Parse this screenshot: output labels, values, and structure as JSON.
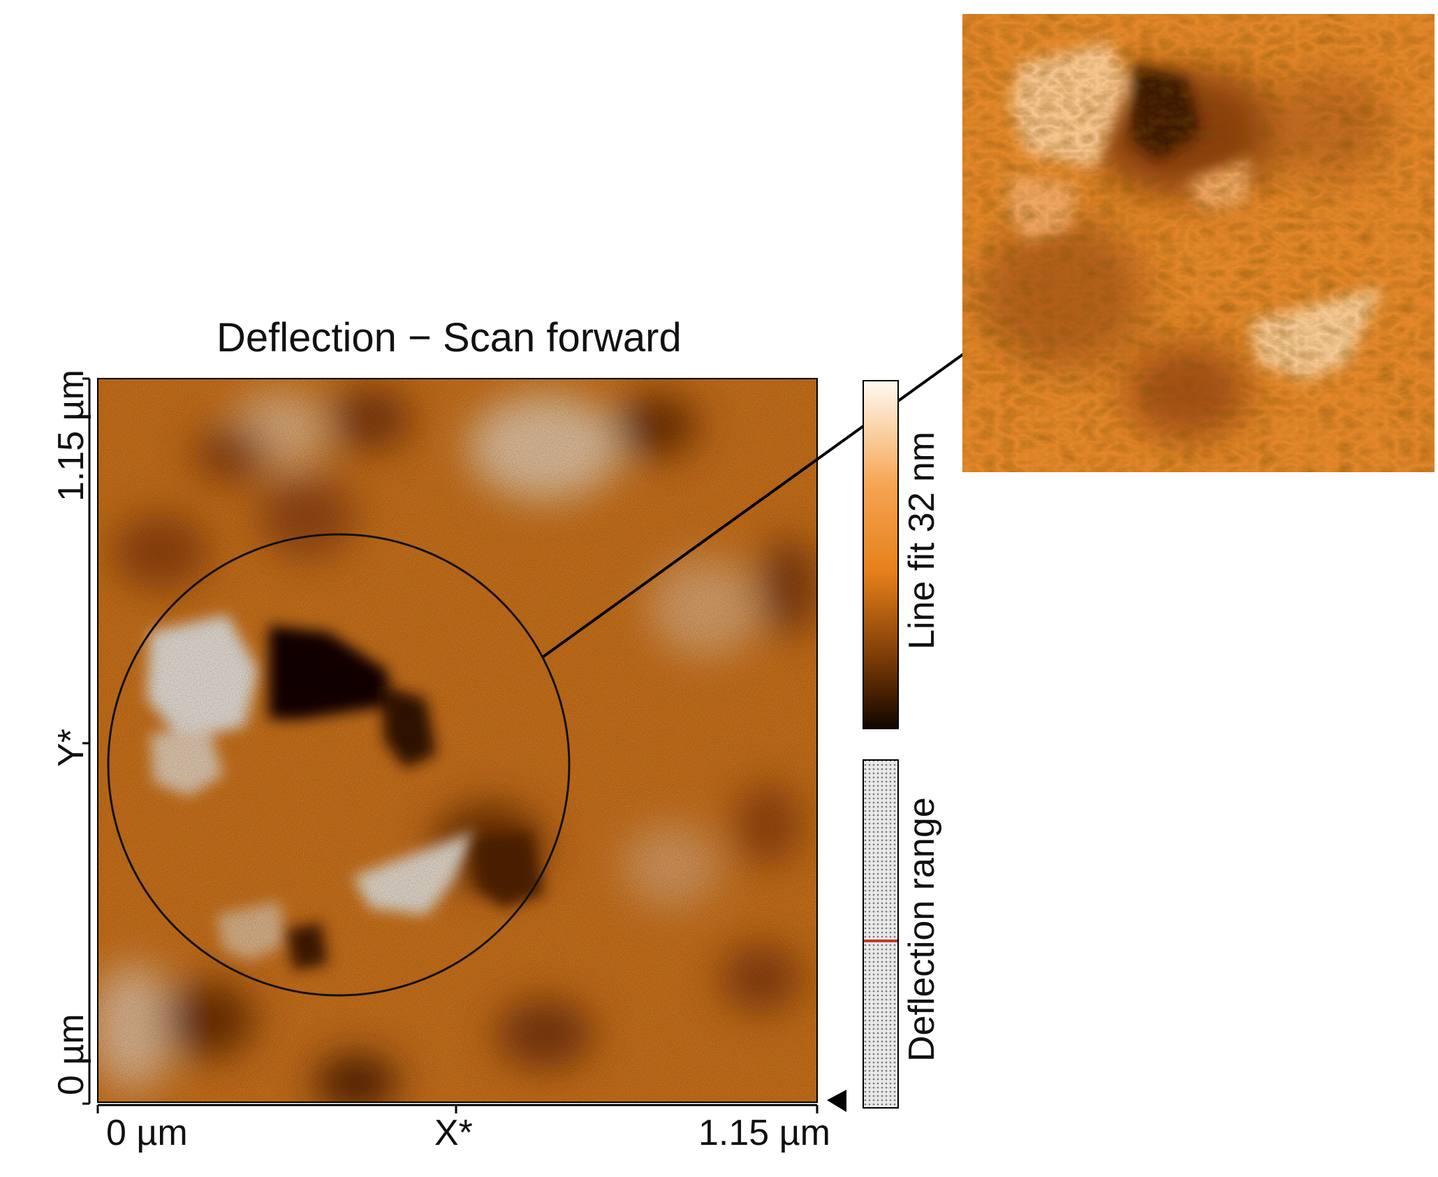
{
  "figure": {
    "title": "Deflection − Scan forward",
    "x_axis": {
      "min_label": "0 µm",
      "mid_label": "X*",
      "max_label": "1.15 µm"
    },
    "y_axis": {
      "min_label": "0 µm",
      "mid_label": "Y*",
      "max_label": "1.15 µm"
    },
    "colorbar": {
      "label": "Line fit 32 nm",
      "gradient": [
        "#fffaf2",
        "#f6a552",
        "#e6801a",
        "#7a3a06",
        "#120500"
      ]
    },
    "range_bar": {
      "label": "Deflection range"
    },
    "colors": {
      "base": "#e6801a",
      "light": "#fff4e4",
      "dark": "#1a0800",
      "axis": "#000000"
    }
  }
}
